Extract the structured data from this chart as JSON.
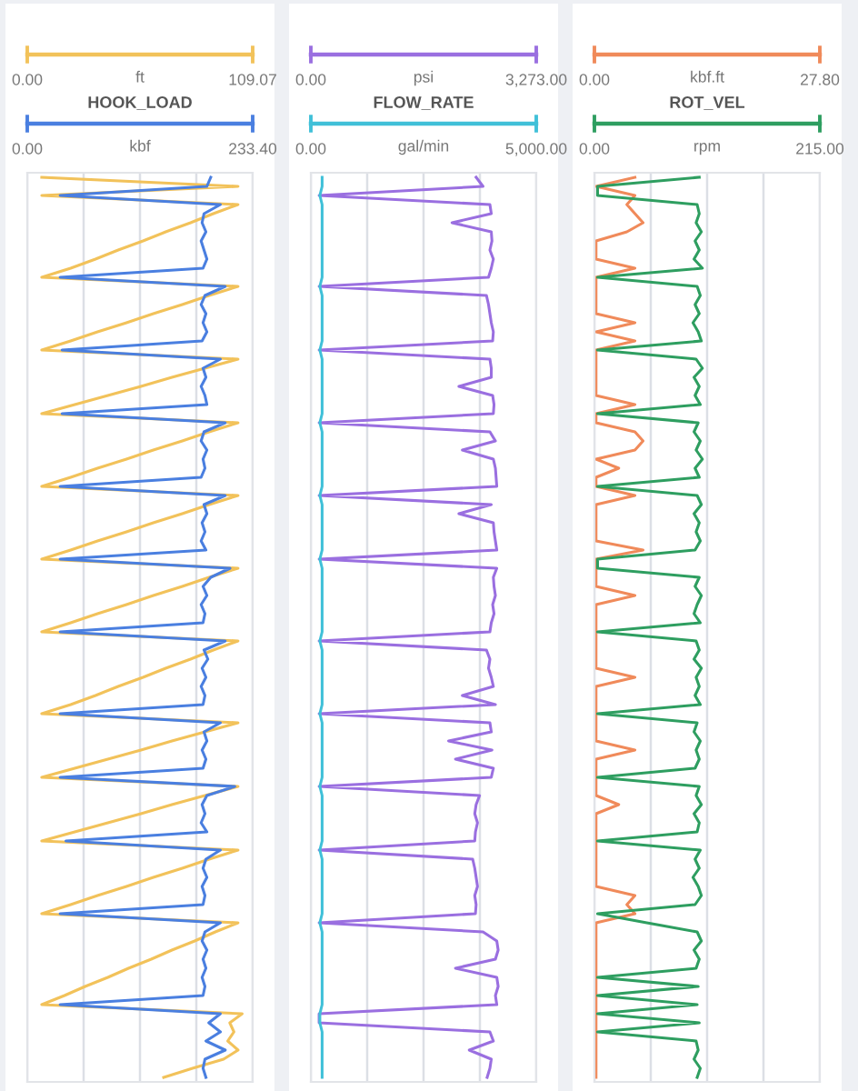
{
  "chart_data": [
    {
      "type": "line",
      "orientation": "horizontal",
      "grid": "x",
      "xlabel": "ft",
      "x2label": "kbf",
      "categories": [
        null,
        null,
        null,
        null,
        null,
        null,
        null,
        null,
        null,
        null,
        null,
        null,
        null,
        null,
        null,
        null,
        null,
        null,
        null,
        null,
        null,
        null,
        null,
        null,
        null,
        null,
        null,
        null,
        null,
        null,
        null,
        null,
        null,
        null,
        null,
        null,
        null,
        null,
        null,
        null,
        null,
        null,
        null,
        null,
        null,
        null,
        null,
        null,
        null,
        null,
        null,
        null,
        null,
        null,
        null,
        null,
        null,
        null,
        null,
        null,
        null,
        null,
        null,
        null,
        null,
        null,
        null,
        null,
        null,
        null,
        null,
        null,
        null,
        null,
        null,
        null,
        null,
        null,
        null,
        null,
        null,
        null,
        null,
        null,
        null,
        null,
        null,
        null,
        null,
        null,
        null,
        null,
        null,
        null,
        null,
        null,
        null,
        null,
        null,
        null
      ],
      "xlim": [
        0,
        109.07
      ],
      "xticks": [
        {
          "value": 0,
          "label": "0.00"
        },
        {
          "value": 27.27,
          "label": null
        },
        {
          "value": 54.54,
          "label": null
        },
        {
          "value": 81.8,
          "label": null
        },
        {
          "value": 109.07,
          "label": "109.07"
        }
      ],
      "x2lim": [
        0,
        233.4
      ],
      "x2ticks": [
        {
          "value": 0,
          "label": "0.00"
        },
        {
          "value": 233.4,
          "label": "233.40"
        }
      ],
      "series": [
        {
          "color": "#f2c25a",
          "values": [
            7,
            102,
            7,
            102,
            90,
            79,
            67,
            56,
            44,
            33,
            21,
            7,
            102,
            88,
            75,
            61,
            48,
            34,
            21,
            7,
            102,
            86,
            70,
            55,
            39,
            23,
            7,
            102,
            88,
            75,
            61,
            48,
            34,
            21,
            7,
            102,
            88,
            75,
            61,
            48,
            34,
            21,
            7,
            102,
            88,
            75,
            61,
            48,
            34,
            21,
            7,
            102,
            90,
            79,
            67,
            56,
            44,
            33,
            21,
            7,
            102,
            86,
            70,
            55,
            39,
            23,
            7,
            102,
            86,
            70,
            55,
            39,
            23,
            7,
            102,
            88,
            75,
            61,
            48,
            34,
            21,
            7,
            102,
            91,
            81,
            70,
            60,
            49,
            39,
            28,
            18,
            7,
            104,
            98,
            100,
            97,
            102,
            95,
            80,
            66
          ]
        },
        {
          "name": "HOOK_LOAD",
          "axis": "x2",
          "color": "#4a7fe0",
          "values": [
            190,
            186,
            34,
            200,
            183,
            181,
            185,
            180,
            183,
            186,
            182,
            34,
            205,
            184,
            180,
            185,
            182,
            186,
            181,
            36,
            200,
            182,
            185,
            180,
            184,
            186,
            36,
            205,
            183,
            180,
            186,
            182,
            184,
            180,
            34,
            205,
            183,
            186,
            181,
            184,
            180,
            185,
            34,
            210,
            190,
            182,
            186,
            180,
            184,
            182,
            34,
            205,
            183,
            187,
            181,
            185,
            180,
            184,
            182,
            34,
            200,
            183,
            186,
            181,
            185,
            182,
            34,
            215,
            186,
            181,
            184,
            180,
            186,
            40,
            200,
            185,
            182,
            186,
            181,
            184,
            182,
            34,
            200,
            184,
            181,
            186,
            182,
            185,
            181,
            184,
            182,
            34,
            200,
            188,
            200,
            185,
            205,
            184,
            182,
            185
          ]
        }
      ]
    },
    {
      "type": "line",
      "orientation": "horizontal",
      "grid": "x",
      "xlabel": "psi",
      "x2label": "gal/min",
      "categories": [
        null,
        null,
        null,
        null,
        null,
        null,
        null,
        null,
        null,
        null,
        null,
        null,
        null,
        null,
        null,
        null,
        null,
        null,
        null,
        null,
        null,
        null,
        null,
        null,
        null,
        null,
        null,
        null,
        null,
        null,
        null,
        null,
        null,
        null,
        null,
        null,
        null,
        null,
        null,
        null,
        null,
        null,
        null,
        null,
        null,
        null,
        null,
        null,
        null,
        null,
        null,
        null,
        null,
        null,
        null,
        null,
        null,
        null,
        null,
        null,
        null,
        null,
        null,
        null,
        null,
        null,
        null,
        null,
        null,
        null,
        null,
        null,
        null,
        null,
        null,
        null,
        null,
        null,
        null,
        null,
        null,
        null,
        null,
        null,
        null,
        null,
        null,
        null,
        null,
        null,
        null,
        null,
        null,
        null,
        null,
        null,
        null,
        null,
        null,
        null
      ],
      "xlim": [
        0,
        3273
      ],
      "xticks": [
        {
          "value": 0,
          "label": "0.00"
        },
        {
          "value": 818.25,
          "label": null
        },
        {
          "value": 1636.5,
          "label": null
        },
        {
          "value": 2454.75,
          "label": null
        },
        {
          "value": 3273,
          "label": "3,273.00"
        }
      ],
      "x2lim": [
        0,
        5000
      ],
      "x2ticks": [
        {
          "value": 0,
          "label": "0.00"
        },
        {
          "value": 5000,
          "label": "5,000.00"
        }
      ],
      "series": [
        {
          "color": "#9a6fe0",
          "values": [
            2400,
            2500,
            120,
            2600,
            2620,
            2050,
            2620,
            2630,
            2600,
            2650,
            2620,
            2580,
            120,
            2550,
            2580,
            2600,
            2620,
            2650,
            2640,
            120,
            2600,
            2620,
            2620,
            2150,
            2640,
            2660,
            2650,
            120,
            2600,
            2680,
            2200,
            2650,
            2680,
            2690,
            2700,
            120,
            2620,
            2150,
            2650,
            2660,
            2680,
            2700,
            120,
            2700,
            2650,
            2660,
            2680,
            2640,
            2660,
            2620,
            2600,
            120,
            2550,
            2600,
            2580,
            2620,
            2650,
            2200,
            2680,
            120,
            2600,
            2620,
            2000,
            2630,
            2100,
            2650,
            2620,
            120,
            2450,
            2400,
            2380,
            2420,
            2390,
            2380,
            120,
            2350,
            2380,
            2400,
            2420,
            2380,
            2400,
            2390,
            120,
            2500,
            2700,
            2720,
            2680,
            2100,
            2700,
            2720,
            2680,
            2700,
            120,
            120,
            2600,
            2650,
            2300,
            2620,
            2600,
            2560
          ]
        },
        {
          "name": "FLOW_RATE",
          "axis": "x2",
          "color": "#40c0d8",
          "values": [
            250,
            250,
            200,
            250,
            250,
            250,
            250,
            250,
            250,
            250,
            250,
            250,
            200,
            250,
            250,
            250,
            250,
            250,
            250,
            200,
            250,
            250,
            250,
            250,
            250,
            250,
            250,
            200,
            250,
            250,
            250,
            250,
            250,
            250,
            250,
            200,
            250,
            250,
            250,
            250,
            250,
            250,
            200,
            250,
            250,
            250,
            250,
            250,
            250,
            250,
            250,
            200,
            250,
            250,
            250,
            250,
            250,
            250,
            250,
            200,
            250,
            250,
            250,
            250,
            250,
            250,
            250,
            200,
            250,
            250,
            250,
            250,
            250,
            250,
            200,
            250,
            250,
            250,
            250,
            250,
            250,
            250,
            200,
            250,
            250,
            250,
            250,
            250,
            250,
            250,
            250,
            250,
            200,
            200,
            250,
            250,
            250,
            250,
            250,
            250
          ]
        }
      ]
    },
    {
      "type": "line",
      "orientation": "horizontal",
      "grid": "x",
      "xlabel": "kbf.ft",
      "x2label": "rpm",
      "categories": [
        null,
        null,
        null,
        null,
        null,
        null,
        null,
        null,
        null,
        null,
        null,
        null,
        null,
        null,
        null,
        null,
        null,
        null,
        null,
        null,
        null,
        null,
        null,
        null,
        null,
        null,
        null,
        null,
        null,
        null,
        null,
        null,
        null,
        null,
        null,
        null,
        null,
        null,
        null,
        null,
        null,
        null,
        null,
        null,
        null,
        null,
        null,
        null,
        null,
        null,
        null,
        null,
        null,
        null,
        null,
        null,
        null,
        null,
        null,
        null,
        null,
        null,
        null,
        null,
        null,
        null,
        null,
        null,
        null,
        null,
        null,
        null,
        null,
        null,
        null,
        null,
        null,
        null,
        null,
        null,
        null,
        null,
        null,
        null,
        null,
        null,
        null,
        null,
        null,
        null,
        null,
        null,
        null,
        null,
        null,
        null,
        null,
        null,
        null,
        null
      ],
      "xlim": [
        0,
        27.8
      ],
      "xticks": [
        {
          "value": 0,
          "label": "0.00"
        },
        {
          "value": 6.95,
          "label": null
        },
        {
          "value": 13.9,
          "label": null
        },
        {
          "value": 20.85,
          "label": null
        },
        {
          "value": 27.8,
          "label": "27.80"
        }
      ],
      "x2lim": [
        0,
        215
      ],
      "x2ticks": [
        {
          "value": 0,
          "label": "0.00"
        },
        {
          "value": 215,
          "label": "215.00"
        }
      ],
      "series": [
        {
          "color": "#f08a5a",
          "values": [
            5,
            0.2,
            5,
            4,
            5,
            6,
            4,
            0.2,
            0.2,
            0.2,
            5,
            0.2,
            0.2,
            0.2,
            0.2,
            0.2,
            5,
            0.2,
            5,
            0.2,
            0.2,
            0.2,
            0.2,
            0.2,
            0.2,
            5,
            0.2,
            0.2,
            5,
            6,
            5,
            0.2,
            3,
            0.2,
            0.2,
            5,
            0.2,
            0.2,
            0.2,
            0.2,
            0.2,
            6,
            0.2,
            0.2,
            0.2,
            0.2,
            5,
            0.2,
            0.2,
            0.2,
            0.2,
            0.2,
            0.2,
            0.2,
            0.2,
            5,
            0.2,
            0.2,
            0.2,
            0.2,
            0.2,
            0.2,
            0.2,
            5,
            0.2,
            0.2,
            0.2,
            0.2,
            0.2,
            3,
            0.2,
            0.2,
            0.2,
            0.2,
            0.2,
            0.2,
            0.2,
            0.2,
            0.2,
            5,
            4,
            5,
            0.2,
            0.2,
            0.2,
            0.2,
            0.2,
            0.2,
            0.2,
            0.2,
            0.2,
            0.2,
            0.2,
            0.2,
            0.2,
            0.2,
            0.2,
            0.2,
            0.2,
            0.2
          ]
        },
        {
          "name": "ROT_VEL",
          "axis": "x2",
          "color": "#2e9e60",
          "values": [
            100,
            3,
            3,
            98,
            100,
            97,
            102,
            96,
            100,
            95,
            103,
            3,
            98,
            101,
            96,
            100,
            94,
            99,
            102,
            3,
            97,
            103,
            95,
            100,
            96,
            101,
            3,
            99,
            95,
            101,
            97,
            103,
            96,
            100,
            3,
            98,
            102,
            95,
            100,
            97,
            101,
            96,
            3,
            3,
            100,
            96,
            102,
            98,
            95,
            101,
            3,
            97,
            100,
            95,
            102,
            97,
            100,
            96,
            101,
            3,
            98,
            95,
            101,
            97,
            100,
            96,
            3,
            100,
            97,
            102,
            95,
            100,
            98,
            3,
            101,
            96,
            100,
            94,
            99,
            102,
            96,
            3,
            50,
            98,
            102,
            95,
            100,
            97,
            3,
            99,
            3,
            98,
            3,
            100,
            3,
            97,
            99,
            95,
            101,
            98
          ]
        }
      ]
    }
  ]
}
